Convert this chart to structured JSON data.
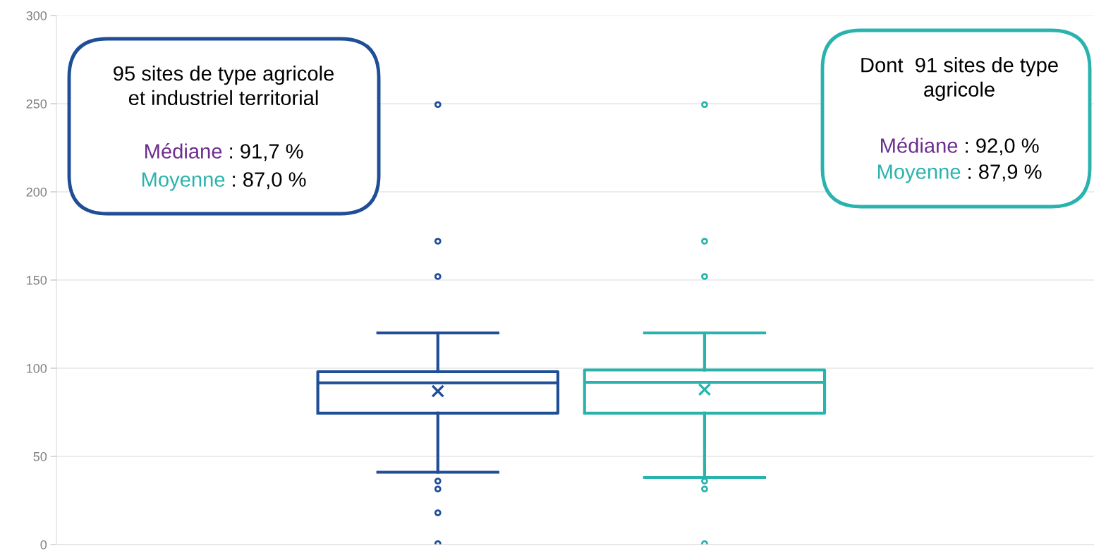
{
  "chart_data": {
    "type": "box",
    "categories": [
      null,
      null
    ],
    "series": [
      {
        "color": "#1f4e96",
        "boxes": [
          {
            "low": 41,
            "q1": 74.5,
            "median": 91.7,
            "q3": 98,
            "high": 120,
            "mean": 87.0,
            "outliers": [
              0.5,
              18,
              31.5,
              36,
              152,
              172,
              249.5
            ]
          },
          null
        ]
      },
      {
        "color": "#2ab3ae",
        "boxes": [
          null,
          {
            "low": 38,
            "q1": 74.5,
            "median": 92.0,
            "q3": 99,
            "high": 120,
            "mean": 87.9,
            "outliers": [
              0.5,
              31.5,
              36,
              152,
              172,
              249.5
            ]
          }
        ]
      }
    ],
    "ylim": [
      0,
      300
    ],
    "yticks": [
      0,
      50,
      100,
      150,
      200,
      250,
      300
    ],
    "grid": "y",
    "tick_labels": "y",
    "annotations": [
      "95 sites de type agricole\net industriel territorial",
      "Médiane : 91,7 %",
      "Moyenne : 87,0 %",
      "Dont  91 sites de type\nagricole",
      "Médiane : 92,0 %",
      "Moyenne : 87,9 %"
    ]
  }
}
